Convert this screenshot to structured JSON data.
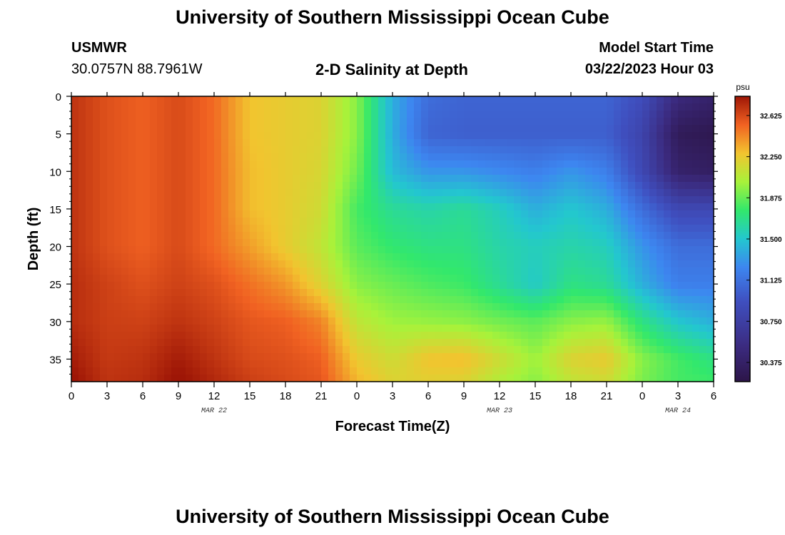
{
  "header": {
    "title": "University of Southern Mississippi Ocean Cube",
    "station": "USMWR",
    "coords": "30.0757N  88.7961W",
    "subtitle": "2-D Salinity at Depth",
    "model_label": "Model Start Time",
    "model_time": "03/22/2023 Hour 03"
  },
  "footer": {
    "title": "University of Southern Mississippi Ocean Cube"
  },
  "chart_data": {
    "type": "heatmap",
    "title": "2-D Salinity at Depth",
    "xlabel": "Forecast Time(Z)",
    "ylabel": "Depth (ft)",
    "x_tick_labels": [
      "0",
      "3",
      "6",
      "9",
      "12",
      "15",
      "18",
      "21",
      "0",
      "3",
      "6",
      "9",
      "12",
      "15",
      "18",
      "21",
      "0",
      "3",
      "6"
    ],
    "date_labels": [
      {
        "label": "MAR 22",
        "at_tick": 4
      },
      {
        "label": "MAR 23",
        "at_tick": 12
      },
      {
        "label": "MAR 24",
        "at_tick": 17
      }
    ],
    "y_tick_labels": [
      "0",
      "5",
      "10",
      "15",
      "20",
      "25",
      "30",
      "35"
    ],
    "y_range_ft": [
      0,
      38
    ],
    "x_range_hours": [
      0,
      54
    ],
    "colorbar": {
      "unit": "psu",
      "tick_labels": [
        "32.625",
        "32.250",
        "31.875",
        "31.500",
        "31.125",
        "30.750",
        "30.375"
      ],
      "range": [
        30.2,
        32.8
      ]
    },
    "depths_ft": [
      0,
      5,
      10,
      15,
      20,
      25,
      30,
      35,
      38
    ],
    "hours": [
      0,
      3,
      6,
      9,
      12,
      15,
      18,
      21,
      24,
      27,
      30,
      33,
      36,
      39,
      42,
      45,
      48,
      51,
      54
    ],
    "values": [
      [
        32.7,
        32.6,
        32.55,
        32.62,
        32.52,
        32.28,
        32.24,
        32.2,
        31.95,
        31.4,
        31.1,
        31.05,
        31.05,
        31.05,
        31.05,
        31.05,
        30.9,
        30.5,
        30.4
      ],
      [
        32.7,
        32.6,
        32.55,
        32.62,
        32.52,
        32.28,
        32.24,
        32.2,
        31.95,
        31.4,
        31.05,
        31.02,
        31.02,
        31.02,
        31.02,
        31.02,
        30.8,
        30.3,
        30.25
      ],
      [
        32.7,
        32.6,
        32.55,
        32.62,
        32.52,
        32.3,
        32.24,
        32.18,
        31.9,
        31.45,
        31.3,
        31.3,
        31.25,
        31.2,
        31.3,
        31.2,
        30.85,
        30.4,
        30.35
      ],
      [
        32.7,
        32.6,
        32.55,
        32.62,
        32.52,
        32.3,
        32.24,
        32.15,
        31.8,
        31.65,
        31.6,
        31.65,
        31.55,
        31.4,
        31.5,
        31.4,
        31.1,
        30.85,
        30.85
      ],
      [
        32.7,
        32.6,
        32.55,
        32.62,
        32.52,
        32.38,
        32.24,
        32.1,
        31.85,
        31.75,
        31.7,
        31.7,
        31.6,
        31.55,
        31.6,
        31.55,
        31.3,
        31.1,
        31.1
      ],
      [
        32.72,
        32.65,
        32.6,
        32.65,
        32.6,
        32.5,
        32.4,
        32.2,
        31.95,
        31.88,
        31.82,
        31.78,
        31.65,
        31.52,
        31.7,
        31.65,
        31.4,
        31.2,
        31.2
      ],
      [
        32.72,
        32.66,
        32.65,
        32.7,
        32.65,
        32.58,
        32.55,
        32.45,
        32.1,
        32.0,
        31.98,
        31.96,
        31.9,
        31.85,
        31.95,
        31.98,
        31.7,
        31.5,
        31.4
      ],
      [
        32.78,
        32.68,
        32.7,
        32.78,
        32.7,
        32.62,
        32.6,
        32.55,
        32.25,
        32.15,
        32.28,
        32.3,
        32.15,
        32.0,
        32.2,
        32.25,
        31.95,
        31.8,
        31.7
      ],
      [
        32.82,
        32.7,
        32.72,
        32.82,
        32.74,
        32.66,
        32.62,
        32.58,
        32.32,
        32.2,
        32.22,
        32.2,
        32.05,
        31.95,
        32.1,
        32.15,
        31.92,
        31.8,
        31.78
      ]
    ]
  }
}
